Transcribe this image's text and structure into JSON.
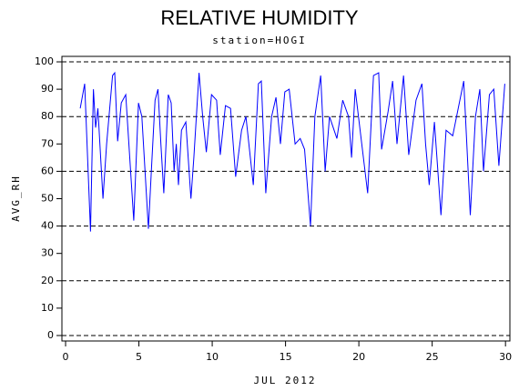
{
  "chart_data": {
    "type": "line",
    "title": "RELATIVE HUMIDITY",
    "subtitle": "station=HOGI",
    "xlabel": "JUL 2012",
    "ylabel": "AVG_RH",
    "xlim": [
      -0.25,
      30.3
    ],
    "ylim": [
      -2,
      102
    ],
    "xticks": [
      0,
      5,
      10,
      15,
      20,
      25,
      30
    ],
    "yticks": [
      0,
      10,
      20,
      30,
      40,
      50,
      60,
      70,
      80,
      90,
      100
    ],
    "grid_lines": [
      0,
      20,
      40,
      60,
      80,
      100
    ],
    "series": [
      {
        "name": "AVG_RH",
        "color": "#0000ff",
        "x": [
          1.0,
          1.3,
          1.7,
          1.9,
          2.05,
          2.2,
          2.55,
          2.8,
          3.2,
          3.35,
          3.55,
          3.8,
          4.1,
          4.65,
          4.97,
          5.2,
          5.65,
          5.85,
          6.1,
          6.3,
          6.5,
          6.7,
          7.0,
          7.2,
          7.4,
          7.55,
          7.7,
          7.9,
          8.2,
          8.55,
          8.75,
          9.1,
          9.35,
          9.6,
          9.95,
          10.3,
          10.55,
          10.9,
          11.25,
          11.6,
          12.0,
          12.3,
          12.8,
          13.15,
          13.35,
          13.65,
          14.05,
          14.35,
          14.65,
          14.95,
          15.25,
          15.65,
          16.0,
          16.3,
          16.7,
          17.0,
          17.4,
          17.7,
          18.0,
          18.5,
          18.9,
          19.3,
          19.5,
          19.75,
          20.6,
          21.0,
          21.35,
          21.55,
          22.0,
          22.3,
          22.6,
          23.05,
          23.4,
          23.9,
          24.3,
          24.55,
          24.8,
          25.15,
          25.6,
          25.95,
          26.4,
          27.15,
          27.6,
          27.95,
          28.25,
          28.5,
          28.9,
          29.2,
          29.55,
          29.95
        ],
        "values": [
          83,
          92,
          38,
          90,
          76,
          83,
          50,
          70,
          95,
          96,
          71,
          85,
          88,
          42,
          85,
          80,
          39,
          60,
          86,
          90,
          70,
          52,
          88,
          85,
          60,
          70,
          55,
          75,
          78,
          50,
          65,
          96,
          80,
          67,
          88,
          86,
          66,
          84,
          83,
          58,
          75,
          80,
          55,
          92,
          93,
          52,
          80,
          87,
          70,
          89,
          90,
          70,
          72,
          68,
          40,
          80,
          95,
          60,
          80,
          72,
          86,
          80,
          65,
          90,
          52,
          95,
          96,
          68,
          82,
          93,
          70,
          95,
          66,
          86,
          92,
          70,
          55,
          78,
          44,
          75,
          73,
          93,
          44,
          80,
          90,
          60,
          88,
          90,
          62,
          92
        ]
      }
    ]
  }
}
